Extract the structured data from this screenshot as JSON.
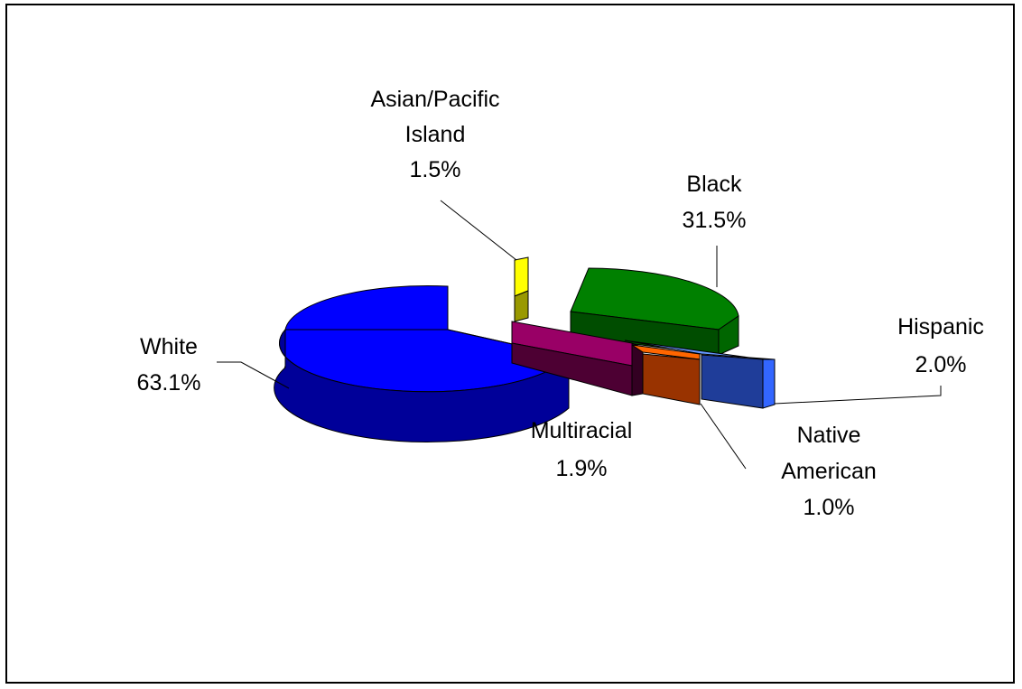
{
  "chart_data": {
    "type": "pie",
    "style": "3d-exploded",
    "title": "",
    "slices": [
      {
        "label_lines": [
          "White"
        ],
        "value_text": "63.1%",
        "value": 63.1,
        "color": "#0000ff"
      },
      {
        "label_lines": [
          "Asian/Pacific",
          "Island"
        ],
        "value_text": "1.5%",
        "value": 1.5,
        "color": "#ffff00"
      },
      {
        "label_lines": [
          "Black"
        ],
        "value_text": "31.5%",
        "value": 31.5,
        "color": "#008000"
      },
      {
        "label_lines": [
          "Hispanic"
        ],
        "value_text": "2.0%",
        "value": 2.0,
        "color": "#3366ff"
      },
      {
        "label_lines": [
          "Native",
          "American"
        ],
        "value_text": "1.0%",
        "value": 1.0,
        "color": "#cc4400"
      },
      {
        "label_lines": [
          "Multiracial"
        ],
        "value_text": "1.9%",
        "value": 1.9,
        "color": "#660033"
      }
    ]
  }
}
